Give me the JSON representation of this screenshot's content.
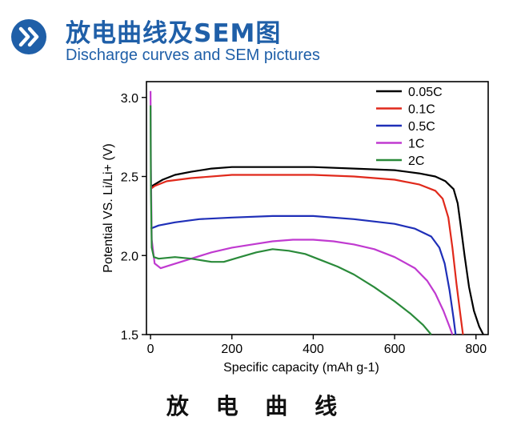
{
  "header": {
    "title_cn": "放电曲线及SEM图",
    "title_en": "Discharge curves and SEM pictures",
    "badge_icon": "double-chevron-right-icon",
    "color": "#1f5fa8"
  },
  "caption": "放 电 曲 线",
  "chart_data": {
    "type": "line",
    "xlabel": "Specific capacity (mAh g-1)",
    "ylabel": "Potential VS. Li/Li+ (V)",
    "xlim": [
      -10,
      830
    ],
    "ylim": [
      1.5,
      3.1
    ],
    "x_ticks": [
      0,
      200,
      400,
      600,
      800
    ],
    "y_ticks": [
      1.5,
      2.0,
      2.5,
      3.0
    ],
    "x_tick_labels": [
      "0",
      "200",
      "400",
      "600",
      "800"
    ],
    "y_tick_labels": [
      "1.5",
      "2.0",
      "2.5",
      "3.0"
    ],
    "legend_position": "top-right",
    "grid": false,
    "series": [
      {
        "name": "0.05C",
        "color": "#000000",
        "points": [
          [
            0,
            2.45
          ],
          [
            4,
            2.44
          ],
          [
            10,
            2.45
          ],
          [
            30,
            2.48
          ],
          [
            60,
            2.51
          ],
          [
            100,
            2.53
          ],
          [
            150,
            2.55
          ],
          [
            200,
            2.56
          ],
          [
            300,
            2.56
          ],
          [
            400,
            2.56
          ],
          [
            500,
            2.55
          ],
          [
            600,
            2.54
          ],
          [
            660,
            2.52
          ],
          [
            700,
            2.5
          ],
          [
            725,
            2.47
          ],
          [
            745,
            2.42
          ],
          [
            755,
            2.33
          ],
          [
            763,
            2.18
          ],
          [
            772,
            2.0
          ],
          [
            783,
            1.8
          ],
          [
            795,
            1.65
          ],
          [
            808,
            1.55
          ],
          [
            818,
            1.5
          ]
        ]
      },
      {
        "name": "0.1C",
        "color": "#e0291b",
        "points": [
          [
            0,
            2.42
          ],
          [
            10,
            2.44
          ],
          [
            40,
            2.47
          ],
          [
            100,
            2.49
          ],
          [
            200,
            2.51
          ],
          [
            300,
            2.51
          ],
          [
            400,
            2.51
          ],
          [
            500,
            2.5
          ],
          [
            600,
            2.48
          ],
          [
            660,
            2.45
          ],
          [
            700,
            2.41
          ],
          [
            718,
            2.36
          ],
          [
            732,
            2.24
          ],
          [
            742,
            2.05
          ],
          [
            752,
            1.82
          ],
          [
            762,
            1.62
          ],
          [
            768,
            1.5
          ]
        ]
      },
      {
        "name": "0.5C",
        "color": "#1f2fb8",
        "points": [
          [
            0,
            2.17
          ],
          [
            20,
            2.19
          ],
          [
            60,
            2.21
          ],
          [
            120,
            2.23
          ],
          [
            200,
            2.24
          ],
          [
            300,
            2.25
          ],
          [
            400,
            2.25
          ],
          [
            500,
            2.23
          ],
          [
            600,
            2.2
          ],
          [
            650,
            2.17
          ],
          [
            690,
            2.12
          ],
          [
            710,
            2.05
          ],
          [
            723,
            1.95
          ],
          [
            735,
            1.78
          ],
          [
            745,
            1.6
          ],
          [
            750,
            1.5
          ]
        ]
      },
      {
        "name": "1C",
        "color": "#c03ad0",
        "points": [
          [
            0,
            3.04
          ],
          [
            1,
            2.55
          ],
          [
            3,
            2.1
          ],
          [
            10,
            1.95
          ],
          [
            25,
            1.92
          ],
          [
            50,
            1.94
          ],
          [
            100,
            1.98
          ],
          [
            150,
            2.02
          ],
          [
            200,
            2.05
          ],
          [
            250,
            2.07
          ],
          [
            300,
            2.09
          ],
          [
            350,
            2.1
          ],
          [
            400,
            2.1
          ],
          [
            450,
            2.09
          ],
          [
            500,
            2.07
          ],
          [
            550,
            2.04
          ],
          [
            600,
            1.99
          ],
          [
            650,
            1.92
          ],
          [
            680,
            1.84
          ],
          [
            700,
            1.76
          ],
          [
            720,
            1.65
          ],
          [
            735,
            1.55
          ],
          [
            742,
            1.5
          ]
        ]
      },
      {
        "name": "2C",
        "color": "#2a8a3a",
        "points": [
          [
            0,
            2.95
          ],
          [
            1,
            2.4
          ],
          [
            3,
            2.05
          ],
          [
            8,
            1.99
          ],
          [
            20,
            1.98
          ],
          [
            60,
            1.99
          ],
          [
            100,
            1.98
          ],
          [
            150,
            1.96
          ],
          [
            180,
            1.96
          ],
          [
            220,
            1.99
          ],
          [
            260,
            2.02
          ],
          [
            300,
            2.04
          ],
          [
            340,
            2.03
          ],
          [
            380,
            2.01
          ],
          [
            420,
            1.97
          ],
          [
            460,
            1.93
          ],
          [
            500,
            1.88
          ],
          [
            550,
            1.8
          ],
          [
            600,
            1.71
          ],
          [
            640,
            1.63
          ],
          [
            670,
            1.56
          ],
          [
            690,
            1.5
          ]
        ]
      }
    ]
  }
}
